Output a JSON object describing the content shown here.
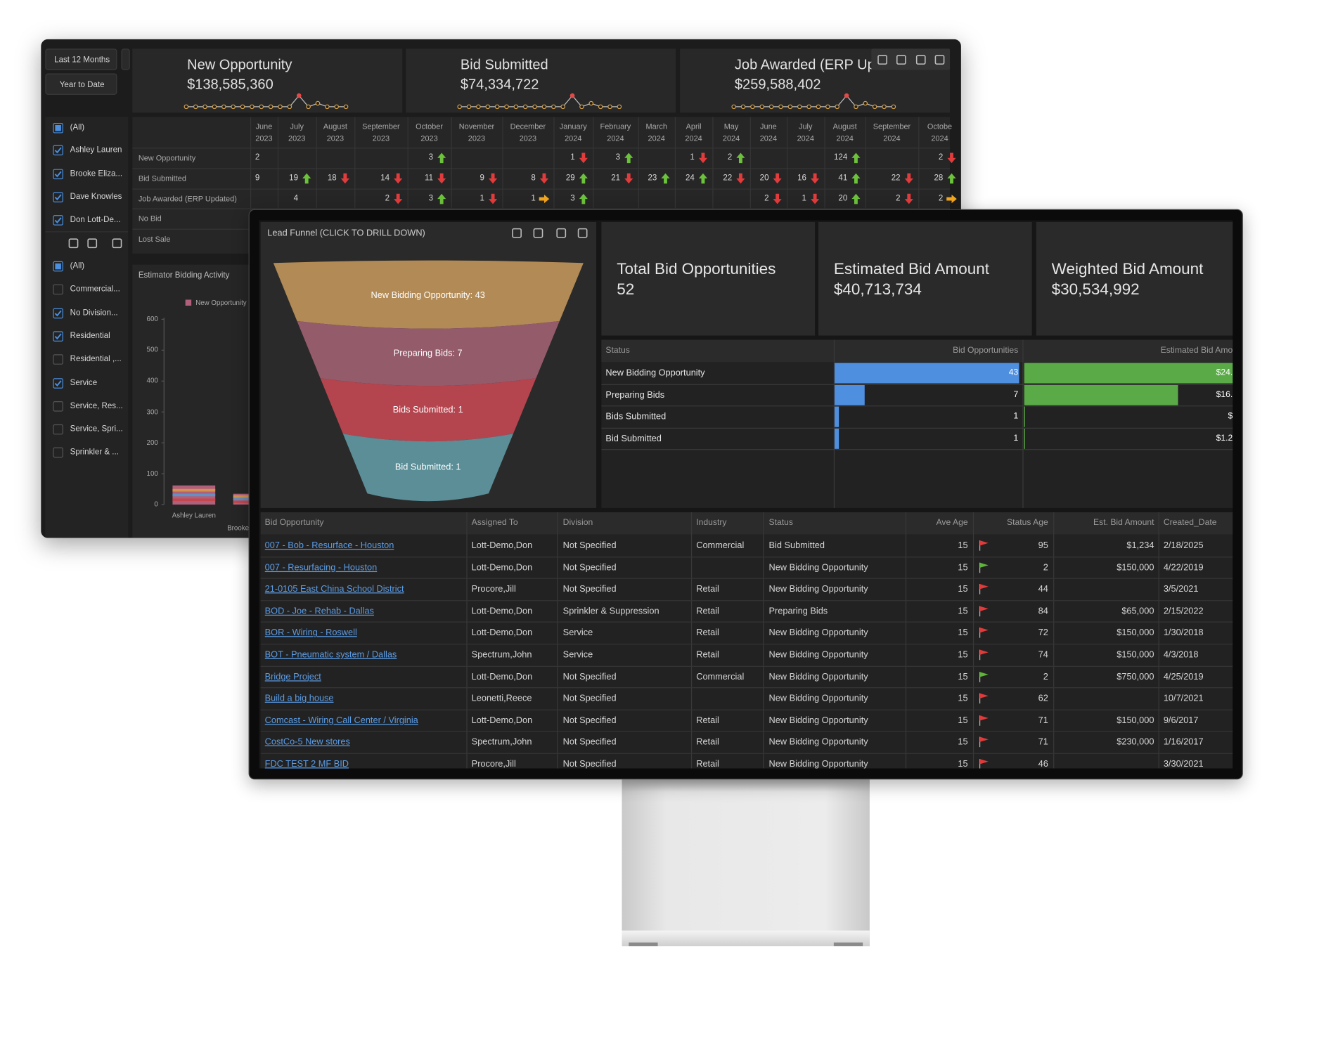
{
  "back_dashboard": {
    "date_buttons": [
      "Last 12 Months",
      "Year to Date"
    ],
    "kpis": [
      {
        "title": "New Opportunity",
        "value": "$138,585,360"
      },
      {
        "title": "Bid Submitted",
        "value": "$74,334,722"
      },
      {
        "title": "Job Awarded (ERP Up",
        "value": "$259,588,402"
      }
    ],
    "estimators": [
      {
        "label": "(All)",
        "state": "partial"
      },
      {
        "label": "Ashley Lauren",
        "state": "checked"
      },
      {
        "label": "Brooke Eliza...",
        "state": "checked"
      },
      {
        "label": "Dave Knowles",
        "state": "checked"
      },
      {
        "label": "Don Lott-De...",
        "state": "checked"
      }
    ],
    "divisions": [
      {
        "label": "(All)",
        "state": "partial"
      },
      {
        "label": "Commercial...",
        "state": "unchecked"
      },
      {
        "label": "No Division...",
        "state": "checked"
      },
      {
        "label": "Residential",
        "state": "checked"
      },
      {
        "label": "Residential ,...",
        "state": "unchecked"
      },
      {
        "label": "Service",
        "state": "checked"
      },
      {
        "label": "Service, Res...",
        "state": "unchecked"
      },
      {
        "label": "Service, Spri...",
        "state": "unchecked"
      },
      {
        "label": "Sprinkler & ...",
        "state": "unchecked"
      }
    ],
    "grid": {
      "months": [
        "June",
        "July",
        "August",
        "September",
        "October",
        "November",
        "December",
        "January",
        "February",
        "March",
        "April",
        "May",
        "June",
        "July",
        "August",
        "September",
        "Octobe"
      ],
      "years": [
        2023,
        2023,
        2023,
        2023,
        2023,
        2023,
        2023,
        2024,
        2024,
        2024,
        2024,
        2024,
        2024,
        2024,
        2024,
        2024,
        2024
      ],
      "rows": [
        {
          "label": "New Opportunity",
          "cells": [
            {
              "v": 2
            },
            null,
            null,
            null,
            {
              "v": 3,
              "t": "up"
            },
            null,
            null,
            {
              "v": 1,
              "t": "down"
            },
            {
              "v": 3,
              "t": "up"
            },
            null,
            {
              "v": 1,
              "t": "down"
            },
            {
              "v": 2,
              "t": "up"
            },
            null,
            null,
            {
              "v": 124,
              "t": "up"
            },
            null,
            {
              "v": 2,
              "t": "down"
            }
          ]
        },
        {
          "label": "Bid Submitted",
          "cells": [
            {
              "v": 9
            },
            {
              "v": 19,
              "t": "up"
            },
            {
              "v": 18,
              "t": "down"
            },
            {
              "v": 14,
              "t": "down"
            },
            {
              "v": 11,
              "t": "down"
            },
            {
              "v": 9,
              "t": "down"
            },
            {
              "v": 8,
              "t": "down"
            },
            {
              "v": 29,
              "t": "up"
            },
            {
              "v": 21,
              "t": "down"
            },
            {
              "v": 23,
              "t": "up"
            },
            {
              "v": 24,
              "t": "up"
            },
            {
              "v": 22,
              "t": "down"
            },
            {
              "v": 20,
              "t": "down"
            },
            {
              "v": 16,
              "t": "down"
            },
            {
              "v": 41,
              "t": "up"
            },
            {
              "v": 22,
              "t": "down"
            },
            {
              "v": 28,
              "t": "up"
            }
          ]
        },
        {
          "label": "Job Awarded (ERP Updated)",
          "cells": [
            null,
            {
              "v": 4
            },
            null,
            {
              "v": 2,
              "t": "down"
            },
            {
              "v": 3,
              "t": "up"
            },
            {
              "v": 1,
              "t": "down"
            },
            {
              "v": 1,
              "t": "right"
            },
            {
              "v": 3,
              "t": "up"
            },
            null,
            null,
            null,
            null,
            {
              "v": 2,
              "t": "down"
            },
            {
              "v": 1,
              "t": "down"
            },
            {
              "v": 20,
              "t": "up"
            },
            {
              "v": 2,
              "t": "down"
            },
            {
              "v": 2,
              "t": "right"
            }
          ]
        },
        {
          "label": "No Bid",
          "cells": [
            null,
            null,
            null,
            null,
            null,
            null,
            null,
            null,
            null,
            null,
            null,
            null,
            null,
            null,
            null,
            null,
            null
          ]
        },
        {
          "label": "Lost Sale",
          "cells": [
            null,
            null,
            null,
            null,
            null,
            null,
            null,
            null,
            null,
            null,
            null,
            null,
            null,
            null,
            null,
            null,
            null
          ]
        }
      ]
    },
    "chart": {
      "type": "bar",
      "title": "Estimator Bidding Activity",
      "legend": "New Opportunity",
      "color": "#b0607a",
      "ylim": [
        0,
        600
      ],
      "yticks": [
        0,
        100,
        200,
        300,
        400,
        500,
        600
      ],
      "categories": [
        "Ashley Lauren",
        "Brooke"
      ],
      "values": [
        62,
        35
      ]
    }
  },
  "front_dashboard": {
    "funnel": {
      "title": "Lead Funnel (CLICK TO DRILL DOWN)",
      "stages": [
        {
          "label": "New Bidding Opportunity: 43",
          "color": "#b18a55"
        },
        {
          "label": "Preparing Bids: 7",
          "color": "#945b6b"
        },
        {
          "label": "Bids Submitted: 1",
          "color": "#b4454f"
        },
        {
          "label": "Bid Submitted: 1",
          "color": "#5b8e97"
        }
      ]
    },
    "kpis": [
      {
        "title": "Total Bid Opportunities",
        "value": 52
      },
      {
        "title": "Estimated Bid Amount",
        "value": "$40,713,734"
      },
      {
        "title": "Weighted Bid Amount",
        "value": "$30,534,992"
      }
    ],
    "status_table": {
      "headers": [
        "Status",
        "Bid Opportunities",
        "Estimated Bid Amo"
      ],
      "count_color": "#4f8fe0",
      "amount_color": "#5aab48",
      "count_max": 43,
      "amount_max": 24300000,
      "rows": [
        {
          "status": "New Bidding Opportunity",
          "count": 43,
          "amount": 24300000,
          "amount_label": "$24."
        },
        {
          "status": "Preparing Bids",
          "count": 7,
          "amount": 16200000,
          "amount_label": "$16."
        },
        {
          "status": "Bids Submitted",
          "count": 1,
          "amount": 5000,
          "amount_label": "$"
        },
        {
          "status": "Bid Submitted",
          "count": 1,
          "amount": 1234,
          "amount_label": "$1.2"
        }
      ]
    },
    "table": {
      "headers": [
        "Bid Opportunity",
        "Assigned To",
        "Division",
        "Industry",
        "Status",
        "Ave Age",
        "Status Age",
        "Est. Bid Amount",
        "Created_Date"
      ],
      "rows": [
        {
          "name": "007 - Bob - Resurface - Houston",
          "assigned": "Lott-Demo,Don",
          "division": "Not Specified",
          "industry": "Commercial",
          "status": "Bid Submitted",
          "ave_age": 15,
          "flag": "red",
          "status_age": 95,
          "amount": "$1,234",
          "date": "2/18/2025"
        },
        {
          "name": "007 - Resurfacing - Houston",
          "assigned": "Lott-Demo,Don",
          "division": "Not Specified",
          "industry": null,
          "status": "New Bidding Opportunity",
          "ave_age": 15,
          "flag": "green",
          "status_age": 2,
          "amount": "$150,000",
          "date": "4/22/2019"
        },
        {
          "name": "21-0105 East China School District",
          "assigned": "Procore,Jill",
          "division": "Not Specified",
          "industry": "Retail",
          "status": "New Bidding Opportunity",
          "ave_age": 15,
          "flag": "red",
          "status_age": 44,
          "amount": null,
          "date": "3/5/2021"
        },
        {
          "name": "BOD - Joe - Rehab - Dallas",
          "assigned": "Lott-Demo,Don",
          "division": "Sprinkler & Suppression",
          "industry": "Retail",
          "status": "Preparing Bids",
          "ave_age": 15,
          "flag": "red",
          "status_age": 84,
          "amount": "$65,000",
          "date": "2/15/2022"
        },
        {
          "name": "BOR - Wiring - Roswell",
          "assigned": "Lott-Demo,Don",
          "division": "Service",
          "industry": "Retail",
          "status": "New Bidding Opportunity",
          "ave_age": 15,
          "flag": "red",
          "status_age": 72,
          "amount": "$150,000",
          "date": "1/30/2018"
        },
        {
          "name": "BOT - Pneumatic system / Dallas",
          "assigned": "Spectrum,John",
          "division": "Service",
          "industry": "Retail",
          "status": "New Bidding Opportunity",
          "ave_age": 15,
          "flag": "red",
          "status_age": 74,
          "amount": "$150,000",
          "date": "4/3/2018"
        },
        {
          "name": "Bridge Project",
          "assigned": "Lott-Demo,Don",
          "division": "Not Specified",
          "industry": "Commercial",
          "status": "New Bidding Opportunity",
          "ave_age": 15,
          "flag": "green",
          "status_age": 2,
          "amount": "$750,000",
          "date": "4/25/2019"
        },
        {
          "name": "Build a big house",
          "assigned": "Leonetti,Reece",
          "division": "Not Specified",
          "industry": null,
          "status": "New Bidding Opportunity",
          "ave_age": 15,
          "flag": "red",
          "status_age": 62,
          "amount": null,
          "date": "10/7/2021"
        },
        {
          "name": "Comcast - Wiring Call Center / Virginia",
          "assigned": "Lott-Demo,Don",
          "division": "Not Specified",
          "industry": "Retail",
          "status": "New Bidding Opportunity",
          "ave_age": 15,
          "flag": "red",
          "status_age": 71,
          "amount": "$150,000",
          "date": "9/6/2017"
        },
        {
          "name": "CostCo-5 New stores",
          "assigned": "Spectrum,John",
          "division": "Not Specified",
          "industry": "Retail",
          "status": "New Bidding Opportunity",
          "ave_age": 15,
          "flag": "red",
          "status_age": 71,
          "amount": "$230,000",
          "date": "1/16/2017"
        },
        {
          "name": "FDC TEST 2 MF BID",
          "assigned": "Procore,Jill",
          "division": "Not Specified",
          "industry": "Retail",
          "status": "New Bidding Opportunity",
          "ave_age": 15,
          "flag": "red",
          "status_age": 46,
          "amount": null,
          "date": "3/30/2021"
        }
      ]
    }
  }
}
